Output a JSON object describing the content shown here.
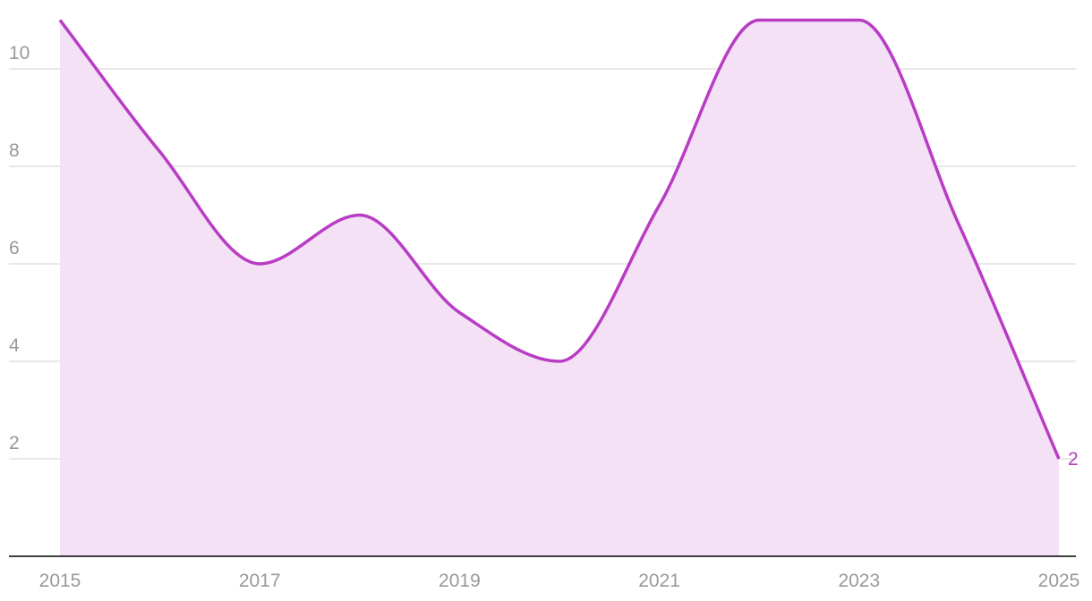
{
  "chart_data": {
    "type": "area",
    "x": [
      2015,
      2016,
      2017,
      2018,
      2019,
      2020,
      2021,
      2022,
      2023,
      2024,
      2025
    ],
    "values": [
      11,
      8.3,
      6,
      7,
      5,
      4,
      7.2,
      11,
      11,
      6.8,
      2
    ],
    "color": "#b83cc4",
    "fill": "#f4e1f6",
    "xlim": [
      2015,
      2025
    ],
    "xticks": [
      2015,
      2017,
      2019,
      2021,
      2023,
      2025
    ],
    "ylim": [
      0,
      11.1
    ],
    "yticks": [
      2,
      4,
      6,
      8,
      10
    ],
    "grid": true,
    "end_label": true
  }
}
